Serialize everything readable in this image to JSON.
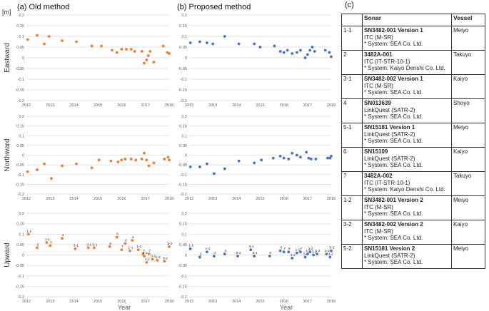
{
  "unit_label": "[m]",
  "year_label": "Year",
  "panel_titles": [
    "(a) Old method",
    "(b) Proposed method",
    "(c)"
  ],
  "colors": {
    "old": "#ed7d31",
    "proposed": "#4472c4",
    "grid": "#d9d9d9",
    "axis_text": "#595959"
  },
  "chart_data": [
    {
      "type": "scatter",
      "title": "(a) Old method",
      "ylabel": "Eastward",
      "xlabel": "",
      "xlim": [
        2012,
        2018
      ],
      "ylim": [
        -0.2,
        0.2
      ],
      "x_ticks": [
        "2012",
        "2013",
        "2014",
        "2015",
        "2016",
        "2017",
        "2018"
      ],
      "y_ticks": [
        "0.2",
        "0.15",
        "0.1",
        "0.05",
        "0",
        "-0.05",
        "-0.1",
        "-0.15",
        "-0.2"
      ],
      "grid": "horizontal",
      "color": "#ed7d31",
      "x": [
        2012.05,
        2012.45,
        2012.75,
        2012.95,
        2013.5,
        2014.1,
        2014.75,
        2015.15,
        2015.6,
        2015.8,
        2016.0,
        2016.2,
        2016.4,
        2016.55,
        2016.85,
        2016.95,
        2017.05,
        2017.12,
        2017.2,
        2017.35,
        2017.75,
        2017.92,
        2018.0
      ],
      "y": [
        0.085,
        0.105,
        0.065,
        0.1,
        0.08,
        0.075,
        0.055,
        0.055,
        0.035,
        0.025,
        0.04,
        0.04,
        0.04,
        0.03,
        0.03,
        -0.025,
        -0.01,
        0.01,
        0.03,
        -0.02,
        0.055,
        0.025,
        0.02
      ]
    },
    {
      "type": "scatter",
      "title": "(b) Proposed method",
      "ylabel": "",
      "xlabel": "",
      "xlim": [
        2012,
        2018
      ],
      "ylim": [
        -0.2,
        0.2
      ],
      "x_ticks": [
        "2012",
        "2013",
        "2014",
        "2015",
        "2016",
        "2017",
        "2018"
      ],
      "y_ticks": [
        "0.2",
        "0.15",
        "0.1",
        "0.05",
        "0",
        "-0.05",
        "-0.1",
        "-0.15",
        "-0.2"
      ],
      "grid": "horizontal",
      "color": "#4472c4",
      "x": [
        2012.05,
        2012.45,
        2012.75,
        2013.0,
        2013.5,
        2014.1,
        2014.75,
        2015.0,
        2015.6,
        2015.85,
        2016.0,
        2016.15,
        2016.35,
        2016.55,
        2016.7,
        2016.9,
        2017.0,
        2017.1,
        2017.2,
        2017.3,
        2017.75,
        2017.92,
        2018.0
      ],
      "y": [
        0.07,
        0.075,
        0.07,
        0.065,
        0.1,
        0.065,
        0.065,
        0.05,
        0.055,
        0.03,
        0.025,
        0.035,
        0.02,
        0.025,
        0.035,
        0.0,
        0.015,
        0.035,
        0.05,
        0.03,
        0.035,
        0.025,
        0.005
      ]
    },
    {
      "type": "scatter",
      "title": "",
      "ylabel": "Northward",
      "xlabel": "",
      "xlim": [
        2012,
        2018
      ],
      "ylim": [
        -0.2,
        0.2
      ],
      "x_ticks": [
        "2012",
        "2013",
        "2014",
        "2015",
        "2016",
        "2017",
        "2018"
      ],
      "y_ticks": [
        "0.2",
        "0.15",
        "0.1",
        "0.05",
        "0",
        "-0.05",
        "-0.1",
        "-0.15",
        "-0.2"
      ],
      "grid": "horizontal",
      "color": "#ed7d31",
      "x": [
        2012.05,
        2012.45,
        2012.75,
        2013.05,
        2013.5,
        2014.1,
        2014.75,
        2015.05,
        2015.55,
        2015.85,
        2016.0,
        2016.15,
        2016.4,
        2016.6,
        2016.85,
        2016.95,
        2017.05,
        2017.15,
        2017.35,
        2017.8,
        2017.95,
        2018.0
      ],
      "y": [
        -0.085,
        -0.075,
        -0.045,
        -0.12,
        -0.055,
        -0.045,
        -0.065,
        -0.025,
        -0.03,
        -0.035,
        -0.025,
        -0.02,
        -0.02,
        -0.025,
        -0.02,
        0.01,
        -0.025,
        -0.055,
        -0.04,
        -0.02,
        -0.01,
        -0.025
      ]
    },
    {
      "type": "scatter",
      "title": "",
      "ylabel": "",
      "xlabel": "",
      "xlim": [
        2012,
        2018
      ],
      "ylim": [
        -0.2,
        0.2
      ],
      "x_ticks": [
        "2012",
        "2013",
        "2014",
        "2015",
        "2016",
        "2017",
        "2018"
      ],
      "y_ticks": [
        "0.2",
        "0.15",
        "0.1",
        "0.05",
        "0",
        "-0.05",
        "-0.1",
        "-0.15",
        "-0.2"
      ],
      "grid": "horizontal",
      "color": "#4472c4",
      "x": [
        2012.05,
        2012.45,
        2012.75,
        2013.05,
        2013.5,
        2014.1,
        2014.75,
        2015.05,
        2015.55,
        2015.85,
        2016.0,
        2016.2,
        2016.35,
        2016.55,
        2016.7,
        2016.95,
        2017.05,
        2017.15,
        2017.35,
        2017.85,
        2017.95,
        2018.0
      ],
      "y": [
        -0.06,
        -0.06,
        -0.045,
        -0.095,
        -0.07,
        -0.03,
        -0.04,
        -0.025,
        -0.015,
        -0.005,
        -0.015,
        -0.02,
        0.01,
        0.0,
        -0.01,
        0.015,
        -0.015,
        -0.02,
        -0.02,
        -0.015,
        -0.015,
        -0.005
      ]
    },
    {
      "type": "scatter",
      "title": "",
      "ylabel": "Upward",
      "xlabel": "Year",
      "xlim": [
        2012,
        2018
      ],
      "ylim": [
        -0.2,
        0.2
      ],
      "x_ticks": [
        "2012",
        "2013",
        "2014",
        "2015",
        "2016",
        "2017",
        "2018"
      ],
      "y_ticks": [
        "0.2",
        "0.15",
        "0.1",
        "0.05",
        "0",
        "-0.05",
        "-0.1",
        "-0.15",
        "-0.2"
      ],
      "grid": "horizontal",
      "color": "#ed7d31",
      "x": [
        2012.08,
        2012.45,
        2012.85,
        2013.0,
        2013.5,
        2014.05,
        2014.6,
        2014.85,
        2015.5,
        2015.8,
        2016.0,
        2016.15,
        2016.35,
        2016.45,
        2016.7,
        2016.9,
        2016.95,
        2017.05,
        2017.15,
        2017.3,
        2017.5,
        2017.8,
        2018.0
      ],
      "y": [
        0.1,
        0.035,
        0.06,
        0.045,
        0.08,
        0.03,
        0.035,
        0.035,
        0.04,
        0.085,
        0.025,
        0.055,
        0.02,
        0.07,
        0.025,
        0.005,
        -0.005,
        -0.035,
        0.005,
        -0.02,
        -0.025,
        -0.03,
        0.04
      ],
      "point_labels": [
        "1-1",
        "2",
        "1-1",
        "3",
        "4",
        "3-1",
        "3-1",
        "5-1",
        "6",
        "5",
        "7",
        "6",
        "1-1",
        "3",
        "1-2",
        "7",
        "5-1",
        "1-2",
        "7",
        "3-2",
        "1-2",
        "3-2",
        "5-2"
      ]
    },
    {
      "type": "scatter",
      "title": "",
      "ylabel": "",
      "xlabel": "Year",
      "xlim": [
        2012,
        2018
      ],
      "ylim": [
        -0.2,
        0.2
      ],
      "x_ticks": [
        "2012",
        "2013",
        "2014",
        "2015",
        "2016",
        "2017",
        "2018"
      ],
      "y_ticks": [
        "0.2",
        "0.15",
        "0.1",
        "0.05",
        "0",
        "-0.05",
        "-0.1",
        "-0.15",
        "-0.2"
      ],
      "grid": "horizontal",
      "color": "#4472c4",
      "x": [
        2012.05,
        2012.45,
        2012.75,
        2013.05,
        2013.5,
        2014.05,
        2014.6,
        2014.75,
        2015.4,
        2015.85,
        2016.0,
        2016.2,
        2016.35,
        2016.55,
        2016.7,
        2016.9,
        2017.0,
        2017.1,
        2017.25,
        2017.4,
        2017.8,
        2017.95,
        2018.0
      ],
      "y": [
        0.03,
        -0.01,
        0.015,
        -0.005,
        0.005,
        -0.005,
        0.025,
        -0.005,
        -0.005,
        0.02,
        0.015,
        0.015,
        -0.015,
        0.01,
        0.015,
        -0.01,
        0.005,
        0.015,
        0.0,
        0.005,
        0.005,
        -0.01,
        0.02
      ],
      "point_labels": [
        "1-1",
        "2",
        "1-1",
        "3",
        "4",
        "3-1",
        "3-1",
        "5-1",
        "6",
        "6",
        "7",
        "5",
        "1-2",
        "1-2",
        "7",
        "5-1",
        "1-2",
        "3-2",
        "3-2",
        "1-2",
        "3-2",
        "3-2",
        "5-2"
      ]
    }
  ],
  "table": {
    "header": [
      "",
      "Sonar",
      "Vessel"
    ],
    "rows": [
      {
        "no": "1-1",
        "sonar": "SN3482-001 Version 1",
        "model": "ITC (M-SR)",
        "system": "* System: SEA Co. Ltd.",
        "vessel": "Meiyo"
      },
      {
        "no": "2",
        "sonar": "3482A-001",
        "model": "ITC (IT-STR-10-1)",
        "system": "* System: Kaiyo Denshi Co. Ltd.",
        "vessel": "Takuyo"
      },
      {
        "no": "3-1",
        "sonar": "SN3482-002 Version 1",
        "model": "ITC (M-SR)",
        "system": "* System: SEA Co. Ltd.",
        "vessel": "Kaiyo"
      },
      {
        "no": "4",
        "sonar": "SN013639",
        "model": "LinkQuest (SATR-2)",
        "system": "* System: SEA Co. Ltd.",
        "vessel": "Shoyo"
      },
      {
        "no": "5-1",
        "sonar": "SN15181 Version 1",
        "model": "LinkQuest (SATR-2)",
        "system": "* System: SEA Co. Ltd.",
        "vessel": "Meiyo"
      },
      {
        "no": "6",
        "sonar": "SN15109",
        "model": "LinkQuest (SATR-2)",
        "system": "* System: SEA Co. Ltd.",
        "vessel": "Kaiyo"
      },
      {
        "no": "7",
        "sonar": "3482A-002",
        "model": "ITC (IT-STR-10-1)",
        "system": "* System: Kaiyo Denshi Co. Ltd.",
        "vessel": "Takuyo"
      },
      {
        "no": "1-2",
        "sonar": "SN3482-001 Version 2",
        "model": "ITC (M-SR)",
        "system": "* System: SEA Co. Ltd.",
        "vessel": "Meiyo"
      },
      {
        "no": "3-2",
        "sonar": "SN3482-002 Version 2",
        "model": "ITC (M-SR)",
        "system": "* System: SEA Co. Ltd.",
        "vessel": "Kaiyo"
      },
      {
        "no": "5-2",
        "sonar": "SN15181 Version 2",
        "model": "LinkQuest (SATR-2)",
        "system": "* System: SEA Co. Ltd.",
        "vessel": "Meiyo"
      }
    ]
  }
}
